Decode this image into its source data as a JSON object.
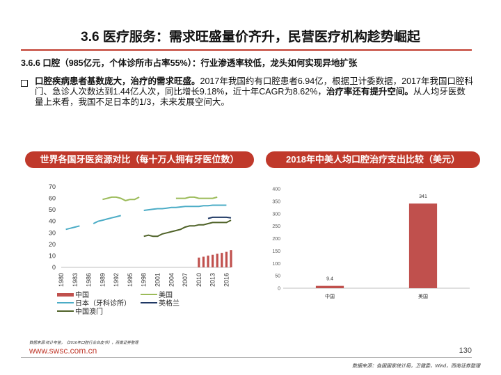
{
  "header": {
    "title": "3.6 医疗服务：需求旺盛量价齐升，民营医疗机构趁势崛起",
    "accent_color": "#c0392b"
  },
  "subsection": {
    "text": "3.6.6 口腔（985亿元，个体诊所市占率55%）：行业渗透率较低，龙头如何实现异地扩张"
  },
  "bullet": {
    "lead_bold": "口腔疾病患者基数庞大，治疗的需求旺盛。",
    "middle": "2017年我国约有口腔患者6.94亿，根据卫计委数据，2017年我国口腔科门、急诊人次数达到1.44亿人次，同比增长9.18%，近十年CAGR为8.62%，",
    "bold2": "治疗率还有提升空间。",
    "tail": "从人均牙医数量上来看，我国不足日本的1/3，未来发展空间大。"
  },
  "banners": {
    "left": "世界各国牙医资源对比（每十万人拥有牙医位数）",
    "right": "2018年中美人均口腔治疗支出比较（美元）"
  },
  "chart_data": [
    {
      "type": "line",
      "title": "世界各国牙医资源对比（每十万人拥有牙医位数）",
      "x": [
        1980,
        1981,
        1982,
        1983,
        1984,
        1985,
        1986,
        1987,
        1988,
        1989,
        1990,
        1991,
        1992,
        1993,
        1994,
        1995,
        1996,
        1997,
        1998,
        1999,
        2000,
        2001,
        2002,
        2003,
        2004,
        2005,
        2006,
        2007,
        2008,
        2009,
        2010,
        2011,
        2012,
        2013,
        2014,
        2015,
        2016,
        2017
      ],
      "xticks": [
        "1980",
        "1983",
        "1986",
        "1989",
        "1992",
        "1995",
        "1998",
        "2001",
        "2004",
        "2007",
        "2010",
        "2013",
        "2016"
      ],
      "ylim": [
        0,
        70
      ],
      "yticks": [
        0,
        10,
        20,
        30,
        40,
        50,
        60,
        70
      ],
      "series": [
        {
          "name": "中国",
          "kind": "bar",
          "color": "#c0504d",
          "values": [
            null,
            null,
            null,
            null,
            null,
            null,
            null,
            null,
            null,
            null,
            null,
            null,
            null,
            null,
            null,
            null,
            null,
            null,
            null,
            null,
            null,
            null,
            null,
            null,
            null,
            null,
            null,
            null,
            null,
            null,
            8.5,
            9.3,
            10.2,
            11.0,
            11.8,
            12.6,
            13.5,
            15.0
          ]
        },
        {
          "name": "美国",
          "kind": "line",
          "color": "#9bbb59",
          "values": [
            null,
            null,
            null,
            null,
            null,
            null,
            null,
            null,
            null,
            59,
            60,
            61,
            61,
            60,
            58,
            59,
            59,
            61,
            null,
            null,
            null,
            null,
            null,
            null,
            null,
            60,
            60,
            60,
            61,
            61,
            60,
            60,
            60,
            60,
            61,
            null,
            null,
            null
          ]
        },
        {
          "name": "日本（牙科诊所）",
          "kind": "line",
          "color": "#4bacc6",
          "values": [
            null,
            33,
            34,
            35,
            36,
            null,
            null,
            38,
            40,
            41,
            42,
            43,
            44,
            45,
            null,
            null,
            null,
            null,
            49.5,
            50,
            50.5,
            51,
            51,
            51.5,
            52,
            52,
            52.5,
            53,
            53,
            53,
            53,
            53.5,
            53.5,
            54,
            54,
            54,
            54,
            null
          ]
        },
        {
          "name": "英格兰",
          "kind": "line",
          "color": "#1f3864",
          "values": [
            null,
            null,
            null,
            null,
            null,
            null,
            null,
            null,
            null,
            null,
            null,
            null,
            null,
            null,
            null,
            null,
            null,
            null,
            null,
            null,
            null,
            null,
            null,
            null,
            null,
            null,
            null,
            null,
            null,
            null,
            null,
            null,
            42.5,
            43.5,
            43.5,
            43.5,
            43.5,
            43
          ]
        },
        {
          "name": "中国澳门",
          "kind": "line",
          "color": "#4f6228",
          "values": [
            null,
            null,
            null,
            null,
            null,
            null,
            null,
            null,
            null,
            null,
            null,
            null,
            null,
            null,
            null,
            null,
            null,
            null,
            27,
            28,
            27,
            27,
            29,
            30,
            31,
            32,
            33,
            35,
            36,
            36,
            37,
            37,
            38,
            39,
            39,
            39,
            39,
            41
          ]
        }
      ],
      "legend_position": "bottom"
    },
    {
      "type": "bar",
      "title": "2018年中美人均口腔治疗支出比较（美元）",
      "categories": [
        "中国",
        "美国"
      ],
      "values": [
        9.4,
        341
      ],
      "ylim": [
        0,
        400
      ],
      "yticks": [
        0,
        50,
        100,
        150,
        200,
        250,
        300,
        350,
        400
      ],
      "color": "#c0504d",
      "data_labels": [
        "9.4",
        "341"
      ]
    }
  ],
  "footer": {
    "source_left": "数据来源:统计年鉴，《2016年口腔行业白皮书》，西南证券整理",
    "website": "www.swsc.com.cn",
    "page_number": "130",
    "source_right": "数据来源：各国国家统计局，卫健委，Wind，西南证券整理"
  }
}
